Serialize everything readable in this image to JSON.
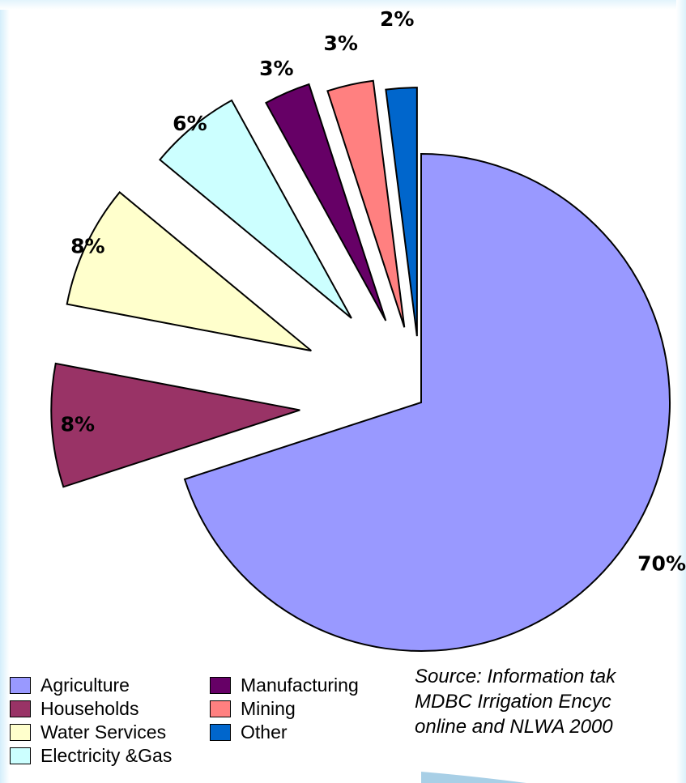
{
  "chart_data": {
    "type": "pie",
    "exploded": true,
    "categories": [
      "Agriculture",
      "Households",
      "Water Services",
      "Electricity &Gas",
      "Manufacturing",
      "Mining",
      "Other"
    ],
    "values": [
      70,
      8,
      8,
      6,
      3,
      3,
      2
    ],
    "data_labels": [
      "70%",
      "8%",
      "8%",
      "6%",
      "3%",
      "3%",
      "2%"
    ],
    "colors": [
      "#9999ff",
      "#993366",
      "#ffffcc",
      "#ccffff",
      "#660066",
      "#ff8080",
      "#0066cc"
    ],
    "legend": {
      "placement": "bottom-left",
      "entries": [
        "Agriculture",
        "Households",
        "Water Services",
        "Electricity &Gas",
        "Manufacturing",
        "Mining",
        "Other"
      ]
    }
  },
  "source_note": {
    "lines": [
      "Source: Information tak",
      "MDBC Irrigation Encyc",
      "online and NLWA 2000"
    ]
  }
}
